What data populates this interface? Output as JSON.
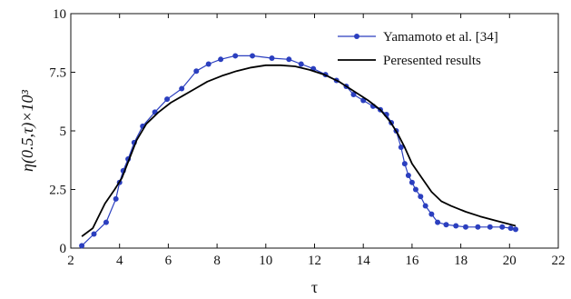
{
  "chart_data": {
    "type": "line",
    "xlabel": "τ",
    "ylabel": "η(0.5,τ)×10³",
    "xlim": [
      2,
      22
    ],
    "ylim": [
      0,
      10
    ],
    "x_ticks": [
      2,
      4,
      6,
      8,
      10,
      12,
      14,
      16,
      18,
      20,
      22
    ],
    "y_ticks": [
      0,
      2.5,
      5,
      7.5,
      10
    ],
    "x_tick_labels": [
      "2",
      "4",
      "6",
      "8",
      "10",
      "12",
      "14",
      "16",
      "18",
      "20",
      "22"
    ],
    "y_tick_labels": [
      "0",
      "2.5",
      "5",
      "7.5",
      "10"
    ],
    "legend_position": "top-right",
    "series": [
      {
        "name": "Yamamoto et al. [34]",
        "color": "#2b3fbf",
        "marker": "circle",
        "x": [
          2.45,
          2.95,
          3.45,
          3.85,
          4.0,
          4.15,
          4.35,
          4.6,
          4.95,
          5.45,
          5.95,
          6.55,
          7.15,
          7.65,
          8.15,
          8.75,
          9.45,
          10.25,
          10.95,
          11.45,
          11.95,
          12.45,
          12.9,
          13.3,
          13.6,
          14.0,
          14.4,
          14.7,
          14.95,
          15.15,
          15.35,
          15.55,
          15.7,
          15.85,
          16.0,
          16.15,
          16.35,
          16.55,
          16.8,
          17.05,
          17.4,
          17.8,
          18.2,
          18.7,
          19.2,
          19.7,
          20.05,
          20.25
        ],
        "y": [
          0.1,
          0.6,
          1.1,
          2.1,
          2.8,
          3.3,
          3.8,
          4.5,
          5.2,
          5.8,
          6.35,
          6.8,
          7.55,
          7.85,
          8.05,
          8.2,
          8.2,
          8.1,
          8.05,
          7.85,
          7.65,
          7.4,
          7.15,
          6.9,
          6.55,
          6.3,
          6.05,
          5.9,
          5.7,
          5.35,
          5.0,
          4.3,
          3.6,
          3.1,
          2.8,
          2.5,
          2.2,
          1.8,
          1.45,
          1.1,
          1.0,
          0.95,
          0.9,
          0.9,
          0.9,
          0.9,
          0.85,
          0.8
        ]
      },
      {
        "name": "Peresented results",
        "color": "#000000",
        "marker": "none",
        "x": [
          2.45,
          2.9,
          3.4,
          3.8,
          4.1,
          4.4,
          4.7,
          5.1,
          5.6,
          6.1,
          6.6,
          7.1,
          7.6,
          8.2,
          8.8,
          9.4,
          10.0,
          10.6,
          11.2,
          11.8,
          12.4,
          13.0,
          13.6,
          14.2,
          14.7,
          15.1,
          15.4,
          15.7,
          16.0,
          16.4,
          16.8,
          17.2,
          17.6,
          18.2,
          18.8,
          19.5,
          20.25
        ],
        "y": [
          0.5,
          0.85,
          1.9,
          2.5,
          3.0,
          3.8,
          4.6,
          5.3,
          5.8,
          6.2,
          6.5,
          6.8,
          7.1,
          7.35,
          7.55,
          7.7,
          7.8,
          7.8,
          7.75,
          7.6,
          7.4,
          7.1,
          6.7,
          6.3,
          5.9,
          5.4,
          4.9,
          4.3,
          3.6,
          3.0,
          2.4,
          2.0,
          1.8,
          1.55,
          1.35,
          1.15,
          0.95
        ]
      }
    ]
  }
}
